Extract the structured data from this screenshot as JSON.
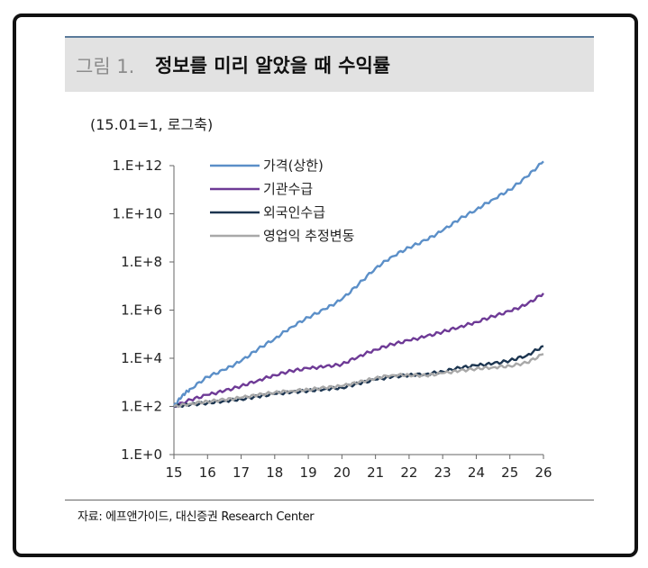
{
  "figure": {
    "number": "그림 1.",
    "title": "정보를 미리 알았을 때 수익률",
    "unit_note": "(15.01=1, 로그축)",
    "source": "자료: 에프앤가이드, 대신증권 Research Center"
  },
  "chart_data": {
    "type": "line",
    "y_scale": "log",
    "grid": false,
    "legend_placement": "top-left",
    "ylim": [
      1,
      1000000000000.0
    ],
    "xlim": [
      15,
      26
    ],
    "x_ticks": [
      15,
      16,
      17,
      18,
      19,
      20,
      21,
      22,
      23,
      24,
      25,
      26
    ],
    "x_tick_labels": [
      "15",
      "16",
      "17",
      "18",
      "19",
      "20",
      "21",
      "22",
      "23",
      "24",
      "25",
      "26"
    ],
    "y_ticks": [
      1,
      100,
      10000,
      1000000,
      100000000,
      10000000000,
      1000000000000
    ],
    "y_tick_labels": [
      "1.E+0",
      "1.E+2",
      "1.E+4",
      "1.E+6",
      "1.E+8",
      "1.E+10",
      "1.E+12"
    ],
    "series": [
      {
        "name": "가격(상한)",
        "color": "#5b8fc8",
        "x": [
          15,
          15.25,
          15.5,
          16,
          16.5,
          17,
          17.5,
          18,
          18.5,
          19,
          19.5,
          20,
          20.5,
          21,
          21.5,
          22,
          22.5,
          23,
          23.5,
          24,
          24.5,
          25,
          25.5,
          26
        ],
        "y": [
          100,
          290,
          540,
          1700,
          3300,
          7600,
          24000,
          65000,
          200000,
          500000,
          1100000,
          2800000,
          12000000,
          55000000,
          170000000,
          400000000,
          800000000,
          2000000000,
          6000000000,
          15000000000,
          40000000000,
          100000000000,
          340000000000,
          1500000000000
        ]
      },
      {
        "name": "기관수급",
        "color": "#6e3a96",
        "x": [
          15,
          15.5,
          16,
          16.5,
          17,
          17.5,
          18,
          18.5,
          19,
          19.5,
          20,
          20.5,
          21,
          21.5,
          22,
          22.5,
          23,
          23.5,
          24,
          24.5,
          25,
          25.5,
          26
        ],
        "y": [
          100,
          190,
          300,
          440,
          700,
          1200,
          2000,
          3000,
          3800,
          4500,
          5600,
          12000,
          23000,
          38000,
          55000,
          80000,
          125000,
          200000,
          320000,
          550000,
          900000,
          1700000,
          5000000
        ]
      },
      {
        "name": "외국인수급",
        "color": "#1c3550",
        "x": [
          15,
          15.5,
          16,
          16.5,
          17,
          17.5,
          18,
          18.5,
          19,
          19.5,
          20,
          20.5,
          21,
          21.5,
          22,
          22.5,
          23,
          23.5,
          24,
          24.5,
          25,
          25.5,
          26
        ],
        "y": [
          100,
          120,
          140,
          170,
          200,
          260,
          330,
          390,
          450,
          530,
          600,
          900,
          1300,
          1700,
          2000,
          2200,
          2800,
          4000,
          5000,
          6000,
          8000,
          13000,
          32000
        ]
      },
      {
        "name": "영업익 추정변동",
        "color": "#a8a8a8",
        "x": [
          15,
          15.5,
          16,
          16.5,
          17,
          17.5,
          18,
          18.5,
          19,
          19.5,
          20,
          20.5,
          21,
          21.5,
          22,
          22.5,
          23,
          23.5,
          24,
          24.5,
          25,
          25.5,
          26
        ],
        "y": [
          100,
          130,
          160,
          190,
          230,
          300,
          380,
          440,
          500,
          600,
          700,
          1000,
          1500,
          2000,
          2000,
          1900,
          2400,
          3000,
          3700,
          4200,
          4800,
          6500,
          15000
        ]
      }
    ]
  }
}
